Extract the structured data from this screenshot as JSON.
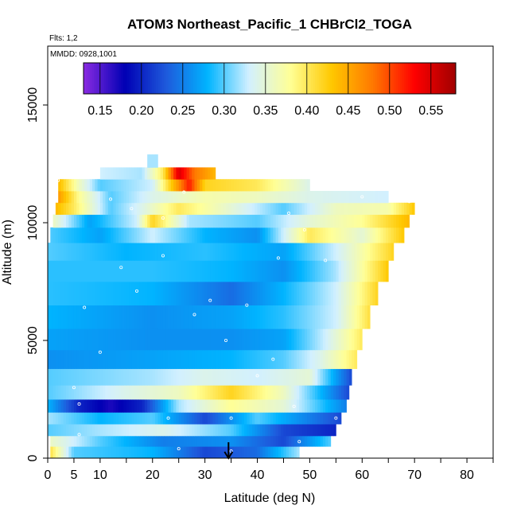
{
  "chart_data": {
    "type": "heatmap",
    "title": "ATOM3 Northeast_Pacific_1 CHBrCl2_TOGA",
    "subtitle_flights": "Flts: 1,2",
    "subtitle_dates": "MMDD: 0928,1001",
    "xlabel": "Latitude (deg N)",
    "ylabel": "Altitude (m)",
    "xlim": [
      0,
      85
    ],
    "ylim": [
      0,
      17500
    ],
    "x_ticks": [
      0,
      5,
      10,
      20,
      30,
      40,
      50,
      60,
      70,
      80
    ],
    "y_ticks": [
      0,
      5000,
      10000,
      15000
    ],
    "colorbar": {
      "min": 0.13,
      "max": 0.58,
      "ticks": [
        0.15,
        0.2,
        0.25,
        0.3,
        0.35,
        0.4,
        0.45,
        0.5,
        0.55
      ],
      "tick_labels": [
        "0.15",
        "0.20",
        "0.25",
        "0.30",
        "0.35",
        "0.40",
        "0.45",
        "0.50",
        "0.55"
      ],
      "colors": [
        "#8a2be2",
        "#0000b4",
        "#1e5adc",
        "#00b4ff",
        "#d2f0ff",
        "#ffff96",
        "#ffc800",
        "#ff7800",
        "#ff0000",
        "#a00000"
      ]
    },
    "arrow_marker_latitude": 34.5,
    "altitude_bands": [
      {
        "alt": 300,
        "lat_start": 0.5,
        "lat_end": 48,
        "values": [
          [
            0,
            0.42
          ],
          [
            5,
            0.3
          ],
          [
            20,
            0.28
          ],
          [
            30,
            0.22
          ],
          [
            40,
            0.24
          ],
          [
            48,
            0.32
          ]
        ]
      },
      {
        "alt": 700,
        "lat_start": 0.5,
        "lat_end": 54,
        "values": [
          [
            0,
            0.36
          ],
          [
            10,
            0.3
          ],
          [
            22,
            0.25
          ],
          [
            35,
            0.26
          ],
          [
            45,
            0.22
          ],
          [
            54,
            0.3
          ]
        ]
      },
      {
        "alt": 1200,
        "lat_start": 0,
        "lat_end": 55,
        "values": [
          [
            0,
            0.3
          ],
          [
            10,
            0.32
          ],
          [
            22,
            0.34
          ],
          [
            35,
            0.3
          ],
          [
            45,
            0.22
          ],
          [
            55,
            0.2
          ]
        ]
      },
      {
        "alt": 1700,
        "lat_start": 0,
        "lat_end": 56,
        "values": [
          [
            0,
            0.32
          ],
          [
            10,
            0.28
          ],
          [
            20,
            0.3
          ],
          [
            30,
            0.22
          ],
          [
            40,
            0.3
          ],
          [
            56,
            0.22
          ]
        ]
      },
      {
        "alt": 2200,
        "lat_start": 0,
        "lat_end": 57,
        "values": [
          [
            0,
            0.28
          ],
          [
            6,
            0.2
          ],
          [
            12,
            0.17
          ],
          [
            18,
            0.2
          ],
          [
            25,
            0.32
          ],
          [
            35,
            0.38
          ],
          [
            45,
            0.35
          ],
          [
            57,
            0.25
          ]
        ]
      },
      {
        "alt": 2800,
        "lat_start": 0,
        "lat_end": 57.5,
        "values": [
          [
            0,
            0.3
          ],
          [
            15,
            0.34
          ],
          [
            25,
            0.36
          ],
          [
            35,
            0.42
          ],
          [
            45,
            0.36
          ],
          [
            57.5,
            0.22
          ]
        ]
      },
      {
        "alt": 3400,
        "lat_start": 0,
        "lat_end": 58,
        "values": [
          [
            0,
            0.3
          ],
          [
            20,
            0.32
          ],
          [
            30,
            0.34
          ],
          [
            40,
            0.33
          ],
          [
            50,
            0.35
          ],
          [
            58,
            0.22
          ]
        ]
      },
      {
        "alt": 4200,
        "lat_start": 0,
        "lat_end": 59,
        "values": [
          [
            0,
            0.26
          ],
          [
            20,
            0.27
          ],
          [
            35,
            0.28
          ],
          [
            45,
            0.3
          ],
          [
            52,
            0.34
          ],
          [
            59,
            0.4
          ]
        ]
      },
      {
        "alt": 5000,
        "lat_start": 0,
        "lat_end": 60,
        "values": [
          [
            0,
            0.27
          ],
          [
            20,
            0.26
          ],
          [
            35,
            0.26
          ],
          [
            45,
            0.27
          ],
          [
            53,
            0.33
          ],
          [
            60,
            0.4
          ]
        ]
      },
      {
        "alt": 6000,
        "lat_start": 0,
        "lat_end": 61.5,
        "values": [
          [
            0,
            0.28
          ],
          [
            20,
            0.26
          ],
          [
            35,
            0.27
          ],
          [
            45,
            0.29
          ],
          [
            55,
            0.33
          ],
          [
            61.5,
            0.41
          ]
        ]
      },
      {
        "alt": 7000,
        "lat_start": 0,
        "lat_end": 63,
        "values": [
          [
            0,
            0.29
          ],
          [
            20,
            0.28
          ],
          [
            35,
            0.24
          ],
          [
            45,
            0.28
          ],
          [
            55,
            0.33
          ],
          [
            63,
            0.42
          ]
        ]
      },
      {
        "alt": 8000,
        "lat_start": 0,
        "lat_end": 65,
        "values": [
          [
            0,
            0.29
          ],
          [
            20,
            0.29
          ],
          [
            35,
            0.28
          ],
          [
            45,
            0.26
          ],
          [
            55,
            0.32
          ],
          [
            65,
            0.43
          ]
        ]
      },
      {
        "alt": 8800,
        "lat_start": 0,
        "lat_end": 66,
        "values": [
          [
            0,
            0.3
          ],
          [
            15,
            0.28
          ],
          [
            30,
            0.29
          ],
          [
            45,
            0.27
          ],
          [
            55,
            0.33
          ],
          [
            66,
            0.42
          ]
        ]
      },
      {
        "alt": 9500,
        "lat_start": 0.5,
        "lat_end": 68,
        "values": [
          [
            0,
            0.3
          ],
          [
            10,
            0.27
          ],
          [
            20,
            0.33
          ],
          [
            30,
            0.28
          ],
          [
            40,
            0.26
          ],
          [
            50,
            0.4
          ],
          [
            60,
            0.35
          ],
          [
            68,
            0.43
          ]
        ]
      },
      {
        "alt": 10100,
        "lat_start": 1,
        "lat_end": 69,
        "values": [
          [
            1,
            0.36
          ],
          [
            8,
            0.27
          ],
          [
            17,
            0.33
          ],
          [
            20,
            0.42
          ],
          [
            27,
            0.32
          ],
          [
            40,
            0.3
          ],
          [
            50,
            0.35
          ],
          [
            60,
            0.38
          ],
          [
            69,
            0.44
          ]
        ]
      },
      {
        "alt": 10600,
        "lat_start": 1.5,
        "lat_end": 70,
        "values": [
          [
            1.5,
            0.44
          ],
          [
            5,
            0.4
          ],
          [
            12,
            0.3
          ],
          [
            18,
            0.34
          ],
          [
            25,
            0.4
          ],
          [
            35,
            0.35
          ],
          [
            45,
            0.3
          ],
          [
            55,
            0.36
          ],
          [
            65,
            0.37
          ],
          [
            70,
            0.43
          ]
        ]
      },
      {
        "alt": 11100,
        "lat_start": 2,
        "lat_end": 65,
        "values": [
          [
            2,
            0.46
          ],
          [
            6,
            0.38
          ],
          [
            12,
            0.3
          ],
          [
            20,
            0.34
          ],
          [
            30,
            0.37
          ],
          [
            40,
            0.36
          ],
          [
            50,
            0.34
          ],
          [
            65,
            0.33
          ]
        ]
      },
      {
        "alt": 11600,
        "lat_start": 2,
        "lat_end": 50,
        "values": [
          [
            2,
            0.44
          ],
          [
            6,
            0.36
          ],
          [
            10,
            0.3
          ],
          [
            20,
            0.33
          ],
          [
            27,
            0.52
          ],
          [
            30,
            0.42
          ],
          [
            40,
            0.4
          ],
          [
            50,
            0.34
          ]
        ]
      },
      {
        "alt": 12100,
        "lat_start": 10,
        "lat_end": 32,
        "values": [
          [
            10,
            0.33
          ],
          [
            18,
            0.32
          ],
          [
            22,
            0.4
          ],
          [
            25,
            0.55
          ],
          [
            28,
            0.48
          ],
          [
            32,
            0.44
          ]
        ]
      },
      {
        "alt": 12600,
        "lat_start": 19,
        "lat_end": 21,
        "values": [
          [
            19,
            0.32
          ],
          [
            21,
            0.32
          ]
        ]
      }
    ],
    "sample_points": [
      [
        2,
        11800
      ],
      [
        5,
        3000
      ],
      [
        6,
        1000
      ],
      [
        6,
        2300
      ],
      [
        7,
        6400
      ],
      [
        10,
        4500
      ],
      [
        14,
        8100
      ],
      [
        17,
        7100
      ],
      [
        16,
        10600
      ],
      [
        22,
        10200
      ],
      [
        22,
        8600
      ],
      [
        23,
        1700
      ],
      [
        25,
        400
      ],
      [
        28,
        6100
      ],
      [
        31,
        6700
      ],
      [
        34,
        5000
      ],
      [
        35,
        1700
      ],
      [
        38,
        6500
      ],
      [
        40,
        3500
      ],
      [
        43,
        4200
      ],
      [
        44,
        8500
      ],
      [
        46,
        10400
      ],
      [
        47,
        2200
      ],
      [
        49,
        9700
      ],
      [
        53,
        8400
      ],
      [
        55,
        1700
      ],
      [
        60,
        11100
      ],
      [
        69,
        10900
      ],
      [
        35,
        300
      ],
      [
        48,
        700
      ],
      [
        12,
        11000
      ],
      [
        26,
        11300
      ]
    ]
  }
}
